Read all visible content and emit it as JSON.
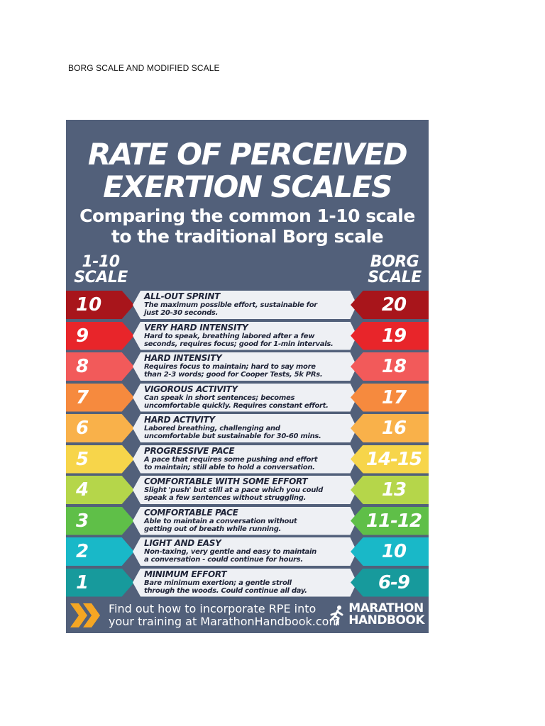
{
  "document": {
    "heading": "BORG SCALE AND MODIFIED SCALE"
  },
  "poster": {
    "title_line1": "RATE OF PERCEIVED",
    "title_line2": "EXERTION SCALES",
    "subtitle_line1": "Comparing the common 1-10 scale",
    "subtitle_line2": "to the traditional Borg scale",
    "left_header_line1": "1-10",
    "left_header_line2": "SCALE",
    "right_header_line1": "BORG",
    "right_header_line2": "SCALE",
    "rows": [
      {
        "scale": "10",
        "borg": "20",
        "title": "ALL-OUT SPRINT",
        "line1": "The maximum possible effort, sustainable for",
        "line2": "just 20-30 seconds.",
        "color": "#a8151b"
      },
      {
        "scale": "9",
        "borg": "19",
        "title": "VERY HARD INTENSITY",
        "line1": "Hard to speak, breathing labored after a few",
        "line2": "seconds, requires focus; good for 1-min intervals.",
        "color": "#e8252a"
      },
      {
        "scale": "8",
        "borg": "18",
        "title": "HARD INTENSITY",
        "line1": "Requires focus to maintain; hard to say more",
        "line2": "than 2-3 words; good for Cooper Tests, 5k PRs.",
        "color": "#f25a5a"
      },
      {
        "scale": "7",
        "borg": "17",
        "title": "VIGOROUS ACTIVITY",
        "line1": "Can speak in short sentences; becomes",
        "line2": "uncomfortable quickly. Requires constant effort.",
        "color": "#f68a3e"
      },
      {
        "scale": "6",
        "borg": "16",
        "title": "HARD ACTIVITY",
        "line1": "Labored breathing, challenging and",
        "line2": "uncomfortable but sustainable for 30-60 mins.",
        "color": "#f9b14a"
      },
      {
        "scale": "5",
        "borg": "14-15",
        "title": "PROGRESSIVE PACE",
        "line1": "A pace that requires some pushing and effort",
        "line2": "to maintain; still able to hold a conversation.",
        "color": "#f7d54a"
      },
      {
        "scale": "4",
        "borg": "13",
        "title": "COMFORTABLE WITH SOME EFFORT",
        "line1": "Slight 'push' but still at a pace which you could",
        "line2": "speak a few sentences without struggling.",
        "color": "#b5d64a"
      },
      {
        "scale": "3",
        "borg": "11-12",
        "title": "COMFORTABLE PACE",
        "line1": "Able to maintain a conversation without",
        "line2": "getting out of breath while running.",
        "color": "#5fbf48"
      },
      {
        "scale": "2",
        "borg": "10",
        "title": "LIGHT AND EASY",
        "line1": "Non-taxing, very gentle and easy to maintain",
        "line2": "a conversation - could continue for hours.",
        "color": "#19b8c8"
      },
      {
        "scale": "1",
        "borg": "6-9",
        "title": "MINIMUM EFFORT",
        "line1": "Bare minimum exertion; a gentle stroll",
        "line2": "through the woods. Could continue all day.",
        "color": "#179a9c"
      }
    ],
    "footer_line1": "Find out how to incorporate RPE into",
    "footer_line2": "your training at MarathonHandbook.com",
    "brand_line1": "MARATHON",
    "brand_line2": "HANDBOOK",
    "icons": [
      "chevrons-icon",
      "runner-icon"
    ],
    "colors": {
      "poster_bg": "#52607a",
      "chevron": "#f5a623",
      "desc_bg": "#eef0f4"
    }
  }
}
